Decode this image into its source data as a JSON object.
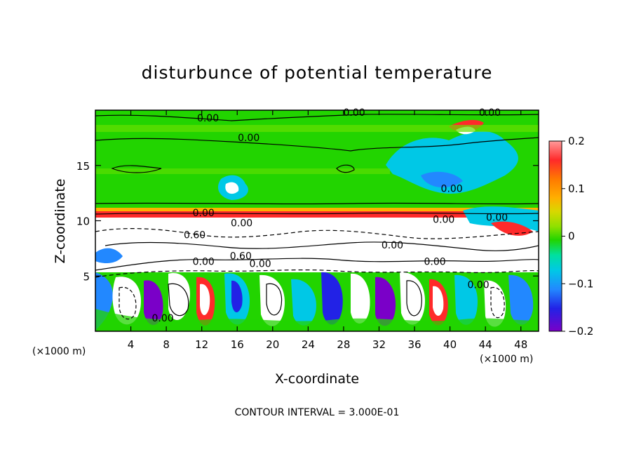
{
  "chart_data": {
    "type": "heatmap",
    "title": "disturbunce of potential temperature",
    "xlabel": "X-coordinate",
    "ylabel": "Z-coordinate",
    "x_unit_left": "(×1000 m)",
    "x_unit_right": "(×1000 m)",
    "xlim": [
      0,
      50
    ],
    "ylim": [
      0,
      20
    ],
    "x_ticks": [
      4,
      8,
      12,
      16,
      20,
      24,
      28,
      32,
      36,
      40,
      44,
      48
    ],
    "y_ticks": [
      5,
      10,
      15
    ],
    "footer": "CONTOUR INTERVAL = 3.000E-01",
    "colorbar": {
      "range": [
        -0.2,
        0.2
      ],
      "ticks": [
        0.2,
        0.1,
        0,
        -0.1,
        -0.2
      ],
      "tick_labels": [
        "0.2",
        "0.1",
        "0",
        "−0.1",
        "−0.2"
      ],
      "colors": [
        "#ff9a9a",
        "#ff2a2a",
        "#ff7a00",
        "#ffb000",
        "#d8d800",
        "#8fe000",
        "#22d400",
        "#00e0a0",
        "#00c8e6",
        "#2288ff",
        "#2222e6",
        "#7a00c8"
      ]
    },
    "contour_labels": [
      {
        "text": "0.00",
        "x": 12.7,
        "z": 19.0
      },
      {
        "text": "0.00",
        "x": 29.2,
        "z": 19.5
      },
      {
        "text": "0.00",
        "x": 44.5,
        "z": 19.5
      },
      {
        "text": "0.00",
        "x": 17.3,
        "z": 17.2
      },
      {
        "text": "0.00",
        "x": 40.2,
        "z": 12.6
      },
      {
        "text": "0.00",
        "x": 12.2,
        "z": 10.4
      },
      {
        "text": "0.00",
        "x": 16.5,
        "z": 9.5
      },
      {
        "text": "0.60",
        "x": 11.2,
        "z": 8.4
      },
      {
        "text": "0.00",
        "x": 12.2,
        "z": 6.0
      },
      {
        "text": "0.60",
        "x": 16.4,
        "z": 6.5
      },
      {
        "text": "0.00",
        "x": 18.6,
        "z": 5.8
      },
      {
        "text": "0.00",
        "x": 33.5,
        "z": 7.5
      },
      {
        "text": "0.00",
        "x": 38.3,
        "z": 6.0
      },
      {
        "text": "0.00",
        "x": 39.3,
        "z": 9.8
      },
      {
        "text": "0.00",
        "x": 45.3,
        "z": 10.0
      },
      {
        "text": "0.00",
        "x": 43.2,
        "z": 3.9
      },
      {
        "text": "0.00",
        "x": 7.6,
        "z": 0.9
      }
    ]
  }
}
